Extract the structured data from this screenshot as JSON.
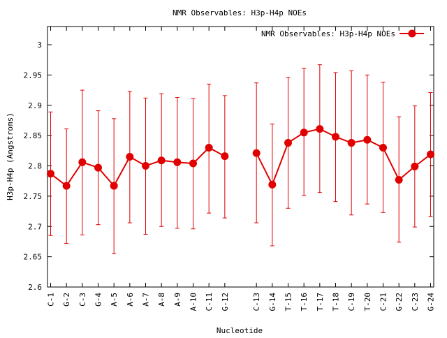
{
  "chart_data": {
    "type": "line",
    "title": "NMR Observables: H3p-H4p NOEs",
    "xlabel": "Nucleotide",
    "ylabel": "H3p-H4p (Angstroms)",
    "ylim": [
      2.6,
      3.03
    ],
    "yticks": [
      2.6,
      2.65,
      2.7,
      2.75,
      2.8,
      2.85,
      2.9,
      2.95,
      3
    ],
    "ytick_labels": [
      "2.6",
      "2.65",
      "2.7",
      "2.75",
      "2.8",
      "2.85",
      "2.9",
      "2.95",
      "3"
    ],
    "grid": false,
    "legend_position": "top-right",
    "color": "#e00000",
    "error_bars": true,
    "marker": "filled-circle",
    "segments": [
      {
        "categories": [
          "C-1",
          "G-2",
          "C-3",
          "G-4",
          "A-5",
          "A-6",
          "A-7",
          "A-8",
          "A-9",
          "A-10",
          "C-11",
          "G-12"
        ],
        "values": [
          2.787,
          2.767,
          2.806,
          2.797,
          2.767,
          2.815,
          2.8,
          2.809,
          2.806,
          2.804,
          2.83,
          2.816
        ],
        "err_low": [
          2.685,
          2.672,
          2.686,
          2.703,
          2.655,
          2.706,
          2.687,
          2.7,
          2.697,
          2.696,
          2.722,
          2.714
        ],
        "err_high": [
          2.889,
          2.861,
          2.925,
          2.891,
          2.878,
          2.923,
          2.912,
          2.919,
          2.913,
          2.911,
          2.935,
          2.916
        ]
      },
      {
        "categories": [
          "C-13",
          "G-14",
          "T-15",
          "T-16",
          "T-17",
          "T-18",
          "C-19",
          "T-20",
          "C-21",
          "G-22",
          "C-23",
          "G-24"
        ],
        "values": [
          2.821,
          2.769,
          2.838,
          2.855,
          2.861,
          2.848,
          2.838,
          2.843,
          2.83,
          2.777,
          2.799,
          2.819
        ],
        "err_low": [
          2.706,
          2.668,
          2.73,
          2.751,
          2.756,
          2.741,
          2.719,
          2.737,
          2.723,
          2.674,
          2.699,
          2.716
        ],
        "err_high": [
          2.937,
          2.869,
          2.946,
          2.961,
          2.967,
          2.954,
          2.957,
          2.95,
          2.938,
          2.881,
          2.899,
          2.921
        ]
      }
    ],
    "series": [
      {
        "name": "NMR Observables: H3p-H4p NOEs"
      }
    ]
  }
}
